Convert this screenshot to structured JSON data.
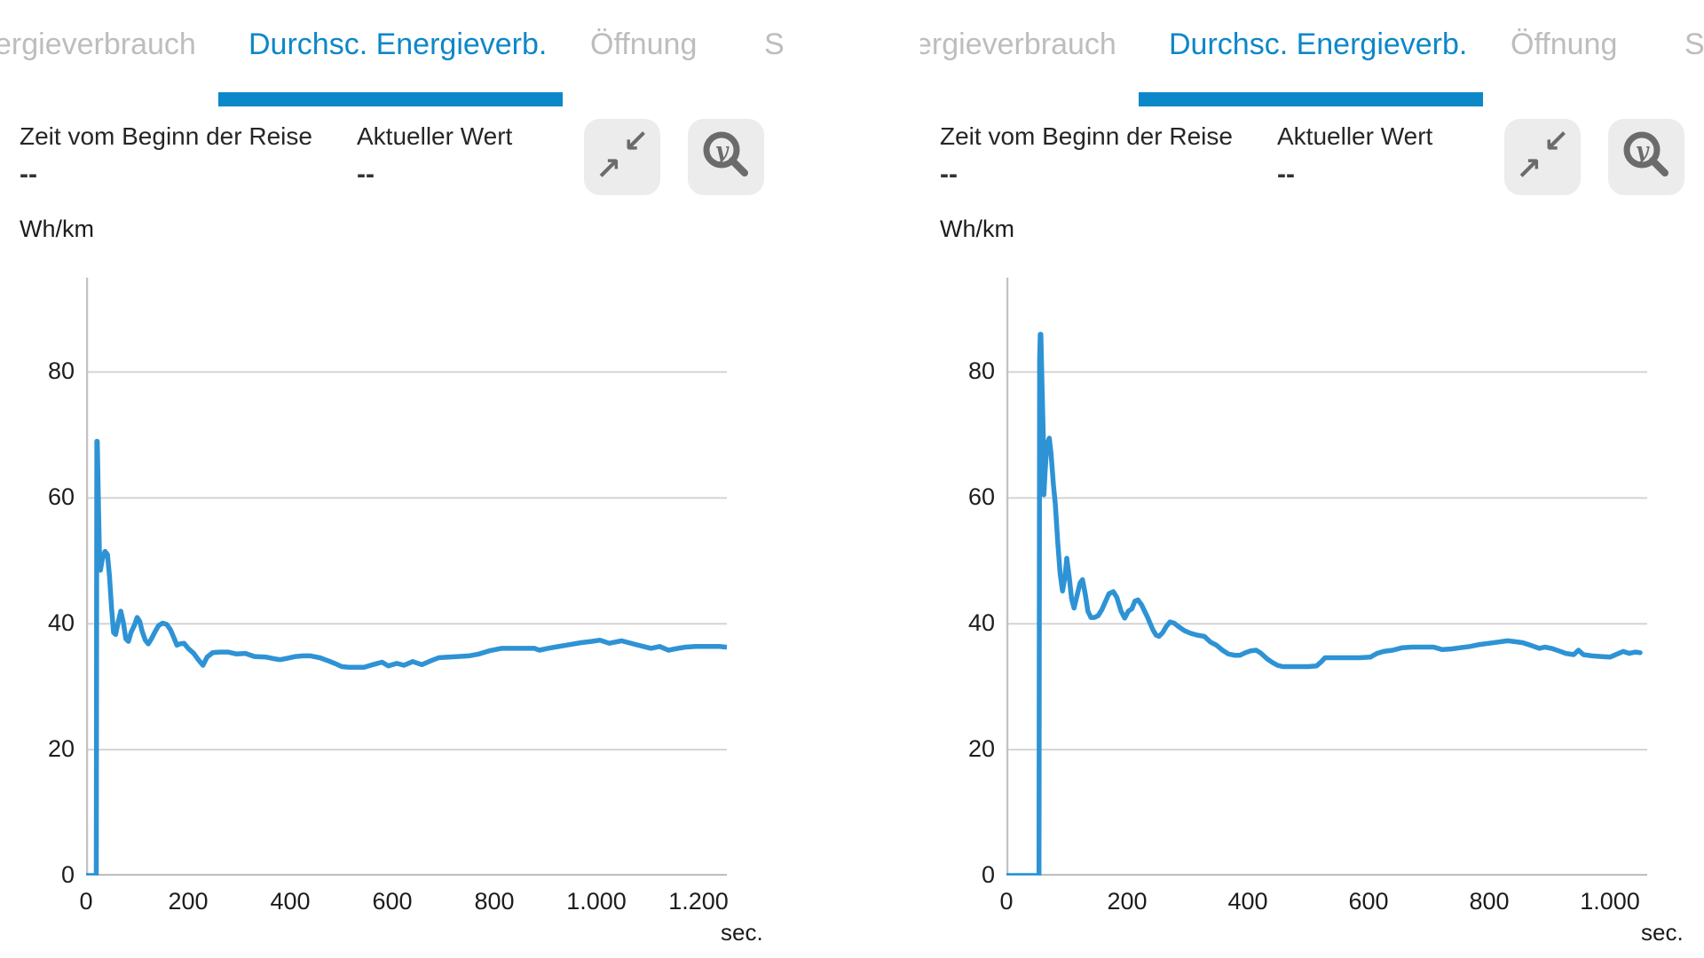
{
  "colors": {
    "accent": "#0c87c8",
    "line": "#2e93d5",
    "inactive_tab": "#bdbdbd",
    "grid": "#d4d4d4",
    "axis_base": "#a8a8a8",
    "axis_y": "#c2c2c2",
    "button_bg": "#ececec",
    "icon": "#6b6b6b"
  },
  "icons": {
    "compress": {
      "name": "compress-arrows-icon",
      "arrow_down_left": "↙",
      "arrow_up_right": "↗"
    },
    "zoom_y": {
      "name": "zoom-y-axis-icon",
      "glyph": "y"
    }
  },
  "panels": [
    {
      "tabs": [
        {
          "label": "ergieverbrauch",
          "active": false
        },
        {
          "label": "Durchsc. Energieverb.",
          "active": true
        },
        {
          "label": "Öffnung",
          "active": false
        },
        {
          "label": "S",
          "active": false
        }
      ],
      "info": [
        {
          "label": "Zeit vom Beginn der Reise",
          "value": "--"
        },
        {
          "label": "Aktueller Wert",
          "value": "--"
        }
      ],
      "unit_y": "Wh/km",
      "unit_x": "sec."
    },
    {
      "tabs": [
        {
          "label": "ergieverbrauch",
          "active": false
        },
        {
          "label": "Durchsc. Energieverb.",
          "active": true
        },
        {
          "label": "Öffnung",
          "active": false
        },
        {
          "label": "S",
          "active": false
        }
      ],
      "info": [
        {
          "label": "Zeit vom Beginn der Reise",
          "value": "--"
        },
        {
          "label": "Aktueller Wert",
          "value": "--"
        }
      ],
      "unit_y": "Wh/km",
      "unit_x": "sec."
    }
  ],
  "chart_data": [
    {
      "type": "line",
      "title": "Durchsc. Energieverb.",
      "ylabel": "Wh/km",
      "xlabel": "sec.",
      "ylim": [
        0,
        95
      ],
      "xlim": [
        0,
        1255
      ],
      "grid": true,
      "legend": "none",
      "y_ticks": [
        0,
        20,
        40,
        60,
        80
      ],
      "x_ticks": [
        0,
        200,
        400,
        600,
        800,
        1000,
        1200
      ],
      "x_tick_labels": [
        "0",
        "200",
        "400",
        "600",
        "800",
        "1.000",
        "1.200"
      ],
      "points": [
        [
          0,
          0
        ],
        [
          19,
          0
        ],
        [
          20,
          0
        ],
        [
          21,
          69
        ],
        [
          22,
          69
        ],
        [
          24,
          60
        ],
        [
          26,
          52
        ],
        [
          28,
          48.5
        ],
        [
          32,
          50.3
        ],
        [
          37,
          51.5
        ],
        [
          42,
          51
        ],
        [
          46,
          47.5
        ],
        [
          50,
          42.5
        ],
        [
          54,
          38.6
        ],
        [
          58,
          38.3
        ],
        [
          63,
          40.3
        ],
        [
          68,
          42
        ],
        [
          73,
          40.2
        ],
        [
          78,
          37.6
        ],
        [
          83,
          37.2
        ],
        [
          88,
          38.6
        ],
        [
          95,
          39.8
        ],
        [
          100,
          41
        ],
        [
          105,
          40.4
        ],
        [
          110,
          38.8
        ],
        [
          116,
          37.4
        ],
        [
          122,
          36.8
        ],
        [
          128,
          37.6
        ],
        [
          135,
          38.7
        ],
        [
          142,
          39.7
        ],
        [
          150,
          40.1
        ],
        [
          158,
          39.9
        ],
        [
          165,
          39.1
        ],
        [
          172,
          37.8
        ],
        [
          178,
          36.6
        ],
        [
          184,
          36.8
        ],
        [
          192,
          36.9
        ],
        [
          200,
          36.1
        ],
        [
          211,
          35.3
        ],
        [
          220,
          34.3
        ],
        [
          229,
          33.4
        ],
        [
          237,
          34.7
        ],
        [
          248,
          35.4
        ],
        [
          262,
          35.5
        ],
        [
          278,
          35.5
        ],
        [
          295,
          35.2
        ],
        [
          312,
          35.3
        ],
        [
          330,
          34.8
        ],
        [
          353,
          34.7
        ],
        [
          371,
          34.4
        ],
        [
          380,
          34.3
        ],
        [
          394,
          34.5
        ],
        [
          411,
          34.8
        ],
        [
          425,
          34.9
        ],
        [
          440,
          34.9
        ],
        [
          458,
          34.6
        ],
        [
          475,
          34.1
        ],
        [
          490,
          33.6
        ],
        [
          501,
          33.2
        ],
        [
          515,
          33.1
        ],
        [
          530,
          33.1
        ],
        [
          545,
          33.1
        ],
        [
          562,
          33.5
        ],
        [
          580,
          33.9
        ],
        [
          592,
          33.3
        ],
        [
          609,
          33.7
        ],
        [
          623,
          33.4
        ],
        [
          640,
          34
        ],
        [
          658,
          33.5
        ],
        [
          675,
          34.1
        ],
        [
          691,
          34.6
        ],
        [
          710,
          34.7
        ],
        [
          730,
          34.8
        ],
        [
          750,
          34.9
        ],
        [
          770,
          35.2
        ],
        [
          790,
          35.7
        ],
        [
          814,
          36.1
        ],
        [
          840,
          36.1
        ],
        [
          865,
          36.1
        ],
        [
          879,
          36.1
        ],
        [
          888,
          35.8
        ],
        [
          905,
          36.1
        ],
        [
          919,
          36.3
        ],
        [
          949,
          36.7
        ],
        [
          970,
          37
        ],
        [
          990,
          37.2
        ],
        [
          1007,
          37.4
        ],
        [
          1025,
          36.9
        ],
        [
          1049,
          37.3
        ],
        [
          1077,
          36.7
        ],
        [
          1107,
          36.1
        ],
        [
          1124,
          36.4
        ],
        [
          1141,
          35.8
        ],
        [
          1160,
          36.1
        ],
        [
          1175,
          36.3
        ],
        [
          1195,
          36.4
        ],
        [
          1220,
          36.4
        ],
        [
          1242,
          36.4
        ],
        [
          1253,
          36.3
        ]
      ]
    },
    {
      "type": "line",
      "title": "Durchsc. Energieverb.",
      "ylabel": "Wh/km",
      "xlabel": "sec.",
      "ylim": [
        0,
        95
      ],
      "xlim": [
        0,
        1050
      ],
      "grid": true,
      "legend": "none",
      "y_ticks": [
        0,
        20,
        40,
        60,
        80
      ],
      "x_ticks": [
        0,
        200,
        400,
        600,
        800,
        1000
      ],
      "x_tick_labels": [
        "0",
        "200",
        "400",
        "600",
        "800",
        "1.000"
      ],
      "points": [
        [
          0,
          0
        ],
        [
          53,
          0
        ],
        [
          54,
          0
        ],
        [
          55,
          82
        ],
        [
          56,
          86
        ],
        [
          57,
          86
        ],
        [
          59,
          78
        ],
        [
          61,
          70
        ],
        [
          62,
          60.5
        ],
        [
          64,
          64
        ],
        [
          67,
          68.5
        ],
        [
          71,
          69.5
        ],
        [
          74,
          67
        ],
        [
          78,
          62
        ],
        [
          81,
          59
        ],
        [
          85,
          53
        ],
        [
          89,
          48
        ],
        [
          93,
          45.2
        ],
        [
          97,
          47.5
        ],
        [
          100,
          50.4
        ],
        [
          104,
          47.5
        ],
        [
          108,
          44
        ],
        [
          112,
          42.5
        ],
        [
          117,
          44.5
        ],
        [
          122,
          46.5
        ],
        [
          126,
          47
        ],
        [
          131,
          44.5
        ],
        [
          135,
          42
        ],
        [
          140,
          41
        ],
        [
          146,
          41
        ],
        [
          152,
          41.3
        ],
        [
          158,
          42.2
        ],
        [
          164,
          43.5
        ],
        [
          170,
          44.8
        ],
        [
          177,
          45.1
        ],
        [
          183,
          44.2
        ],
        [
          190,
          42
        ],
        [
          196,
          40.9
        ],
        [
          202,
          42
        ],
        [
          208,
          42.4
        ],
        [
          213,
          43.6
        ],
        [
          218,
          43.8
        ],
        [
          224,
          43
        ],
        [
          229,
          42
        ],
        [
          234,
          41
        ],
        [
          238,
          40.1
        ],
        [
          243,
          39
        ],
        [
          248,
          38.2
        ],
        [
          253,
          38
        ],
        [
          259,
          38.6
        ],
        [
          265,
          39.6
        ],
        [
          271,
          40.3
        ],
        [
          278,
          40.1
        ],
        [
          286,
          39.5
        ],
        [
          295,
          38.9
        ],
        [
          305,
          38.5
        ],
        [
          316,
          38.2
        ],
        [
          328,
          38
        ],
        [
          338,
          37.1
        ],
        [
          348,
          36.6
        ],
        [
          358,
          35.8
        ],
        [
          368,
          35.2
        ],
        [
          378,
          35
        ],
        [
          387,
          35
        ],
        [
          396,
          35.4
        ],
        [
          405,
          35.7
        ],
        [
          414,
          35.8
        ],
        [
          422,
          35.3
        ],
        [
          431,
          34.5
        ],
        [
          440,
          33.9
        ],
        [
          449,
          33.4
        ],
        [
          458,
          33.2
        ],
        [
          472,
          33.2
        ],
        [
          486,
          33.2
        ],
        [
          500,
          33.2
        ],
        [
          514,
          33.3
        ],
        [
          522,
          34
        ],
        [
          528,
          34.6
        ],
        [
          545,
          34.6
        ],
        [
          565,
          34.6
        ],
        [
          585,
          34.6
        ],
        [
          603,
          34.7
        ],
        [
          614,
          35.3
        ],
        [
          625,
          35.6
        ],
        [
          640,
          35.8
        ],
        [
          656,
          36.2
        ],
        [
          672,
          36.3
        ],
        [
          690,
          36.3
        ],
        [
          708,
          36.3
        ],
        [
          722,
          35.9
        ],
        [
          737,
          36
        ],
        [
          752,
          36.2
        ],
        [
          768,
          36.4
        ],
        [
          784,
          36.7
        ],
        [
          800,
          36.9
        ],
        [
          815,
          37.1
        ],
        [
          830,
          37.3
        ],
        [
          840,
          37.2
        ],
        [
          855,
          37
        ],
        [
          868,
          36.6
        ],
        [
          883,
          36.1
        ],
        [
          892,
          36.3
        ],
        [
          903,
          36.1
        ],
        [
          915,
          35.7
        ],
        [
          927,
          35.3
        ],
        [
          940,
          35.1
        ],
        [
          948,
          35.8
        ],
        [
          956,
          35.1
        ],
        [
          970,
          34.9
        ],
        [
          985,
          34.8
        ],
        [
          1000,
          34.7
        ],
        [
          1012,
          35.2
        ],
        [
          1022,
          35.6
        ],
        [
          1032,
          35.3
        ],
        [
          1042,
          35.5
        ],
        [
          1050,
          35.4
        ]
      ]
    }
  ]
}
